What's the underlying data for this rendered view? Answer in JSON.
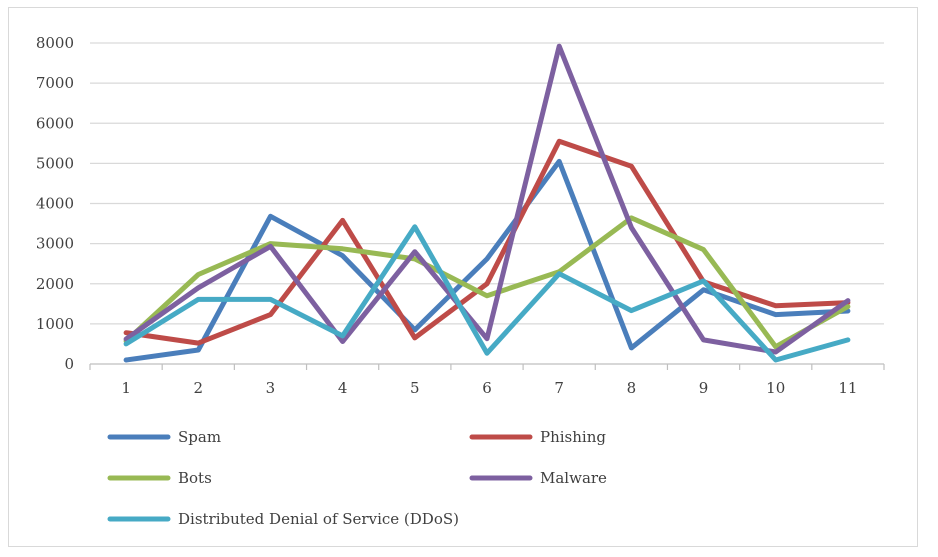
{
  "chart_data": {
    "type": "line",
    "title": "",
    "xlabel": "",
    "ylabel": "",
    "x": [
      1,
      2,
      3,
      4,
      5,
      6,
      7,
      8,
      9,
      10,
      11
    ],
    "x_tick_labels": [
      "1",
      "2",
      "3",
      "4",
      "5",
      "6",
      "7",
      "8",
      "9",
      "10",
      "11"
    ],
    "ylim": [
      0,
      8000
    ],
    "y_ticks": [
      0,
      1000,
      2000,
      3000,
      4000,
      5000,
      6000,
      7000,
      8000
    ],
    "y_tick_labels": [
      "0",
      "1000",
      "2000",
      "3000",
      "4000",
      "5000",
      "6000",
      "7000",
      "8000"
    ],
    "grid": true,
    "legend_position": "bottom",
    "series": [
      {
        "name": "Spam",
        "color": "#4a7ebb",
        "values": [
          100,
          350,
          3680,
          2700,
          850,
          2620,
          5050,
          400,
          1850,
          1230,
          1320
        ]
      },
      {
        "name": "Phishing",
        "color": "#be4b48",
        "values": [
          780,
          520,
          1230,
          3580,
          650,
          2000,
          5550,
          4930,
          2050,
          1450,
          1530
        ]
      },
      {
        "name": "Bots",
        "color": "#98b954",
        "values": [
          570,
          2230,
          3000,
          2870,
          2620,
          1700,
          2300,
          3640,
          2850,
          430,
          1430
        ]
      },
      {
        "name": "Malware",
        "color": "#7d60a0",
        "values": [
          620,
          1900,
          2930,
          560,
          2800,
          630,
          7920,
          3400,
          600,
          300,
          1580
        ]
      },
      {
        "name": "Distributed Denial of Service (DDoS)",
        "color": "#46aac5",
        "values": [
          500,
          1610,
          1610,
          700,
          3420,
          270,
          2250,
          1330,
          2070,
          100,
          600
        ]
      }
    ]
  }
}
